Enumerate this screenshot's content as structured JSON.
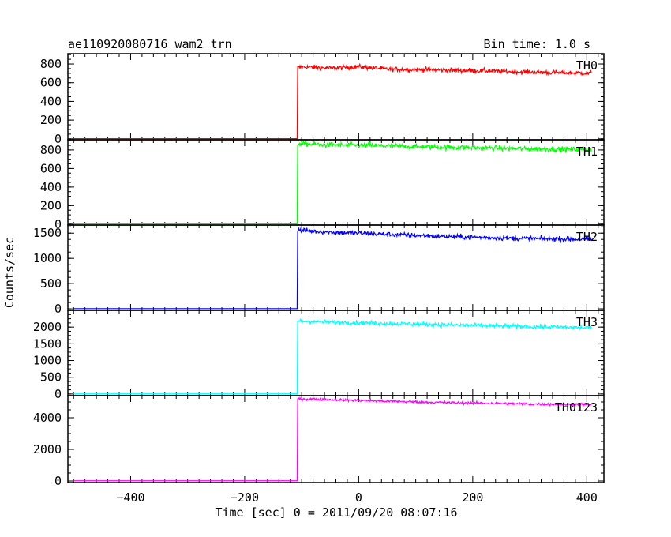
{
  "chart_data": {
    "type": "line",
    "title": "ae110920080716_wam2_trn",
    "subtitle": "Bin time: 1.0 s",
    "xlabel": "Time [sec] 0 = 2011/09/20 08:07:16",
    "ylabel": "Counts/sec",
    "xlim": [
      -510,
      430
    ],
    "x_ticks": [
      -400,
      -200,
      0,
      200,
      400
    ],
    "x_tick_labels": [
      "−400",
      "−200",
      "0",
      "200",
      "400"
    ],
    "grid": false,
    "panels": [
      {
        "name": "TH0",
        "color": "#ff0000",
        "ylim": [
          -10,
          910
        ],
        "y_ticks": [
          0,
          200,
          400,
          600,
          800
        ],
        "y_tick_labels": [
          "0",
          "200",
          "400",
          "600",
          "800"
        ],
        "step_time": -107,
        "pre_level": 2,
        "points": [
          [
            -107,
            760
          ],
          [
            -100,
            770
          ],
          [
            -50,
            755
          ],
          [
            0,
            770
          ],
          [
            50,
            745
          ],
          [
            100,
            740
          ],
          [
            150,
            735
          ],
          [
            200,
            730
          ],
          [
            250,
            722
          ],
          [
            300,
            712
          ],
          [
            350,
            708
          ],
          [
            408,
            700
          ]
        ],
        "noise": 18
      },
      {
        "name": "TH1",
        "color": "#00ff00",
        "ylim": [
          -10,
          910
        ],
        "y_ticks": [
          0,
          200,
          400,
          600,
          800
        ],
        "y_tick_labels": [
          "0",
          "200",
          "400",
          "600",
          "800"
        ],
        "step_time": -107,
        "pre_level": 2,
        "points": [
          [
            -107,
            870
          ],
          [
            -100,
            865
          ],
          [
            -50,
            855
          ],
          [
            0,
            850
          ],
          [
            50,
            845
          ],
          [
            100,
            835
          ],
          [
            150,
            830
          ],
          [
            200,
            825
          ],
          [
            250,
            818
          ],
          [
            300,
            812
          ],
          [
            350,
            808
          ],
          [
            408,
            805
          ]
        ],
        "noise": 20
      },
      {
        "name": "TH2",
        "color": "#0000ff",
        "ylim": [
          -30,
          1660
        ],
        "y_ticks": [
          0,
          500,
          1000,
          1500
        ],
        "y_tick_labels": [
          "0",
          "500",
          "1000",
          "1500"
        ],
        "step_time": -107,
        "pre_level": 5,
        "points": [
          [
            -107,
            1560
          ],
          [
            -100,
            1555
          ],
          [
            -50,
            1520
          ],
          [
            0,
            1500
          ],
          [
            50,
            1475
          ],
          [
            100,
            1455
          ],
          [
            150,
            1435
          ],
          [
            200,
            1420
          ],
          [
            250,
            1405
          ],
          [
            300,
            1390
          ],
          [
            350,
            1385
          ],
          [
            408,
            1375
          ]
        ],
        "noise": 35
      },
      {
        "name": "TH3",
        "color": "#00ffff",
        "ylim": [
          -50,
          2500
        ],
        "y_ticks": [
          0,
          500,
          1000,
          1500,
          2000
        ],
        "y_tick_labels": [
          "0",
          "500",
          "1000",
          "1500",
          "2000"
        ],
        "step_time": -107,
        "pre_level": 5,
        "points": [
          [
            -107,
            2180
          ],
          [
            -100,
            2175
          ],
          [
            -50,
            2150
          ],
          [
            0,
            2130
          ],
          [
            50,
            2110
          ],
          [
            100,
            2090
          ],
          [
            150,
            2070
          ],
          [
            200,
            2050
          ],
          [
            250,
            2030
          ],
          [
            300,
            2015
          ],
          [
            350,
            2000
          ],
          [
            408,
            1980
          ]
        ],
        "noise": 45
      },
      {
        "name": "TH0123",
        "color": "#ff00ff",
        "ylim": [
          -100,
          5400
        ],
        "y_ticks": [
          0,
          2000,
          4000
        ],
        "y_tick_labels": [
          "0",
          "2000",
          "4000"
        ],
        "step_time": -107,
        "pre_level": 15,
        "points": [
          [
            -107,
            5200
          ],
          [
            -100,
            5190
          ],
          [
            -50,
            5150
          ],
          [
            0,
            5100
          ],
          [
            50,
            5050
          ],
          [
            100,
            5000
          ],
          [
            150,
            4960
          ],
          [
            200,
            4930
          ],
          [
            250,
            4900
          ],
          [
            300,
            4870
          ],
          [
            350,
            4850
          ],
          [
            408,
            4830
          ]
        ],
        "noise": 60
      }
    ]
  }
}
